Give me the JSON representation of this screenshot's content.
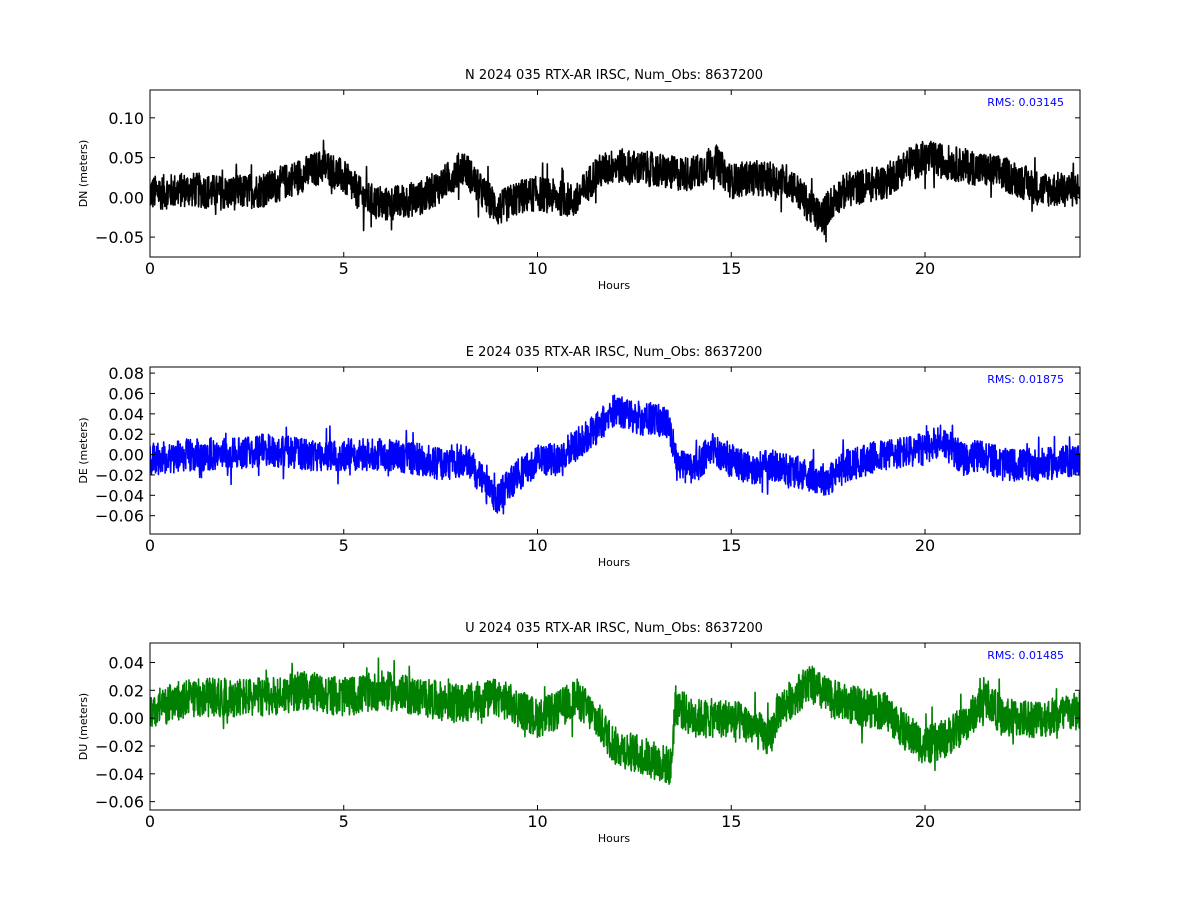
{
  "chart_data": [
    {
      "type": "line",
      "title": "N 2024 035 RTX-AR  IRSC, Num_Obs: 8637200",
      "xlabel": "Hours",
      "ylabel": "DN (meters)",
      "xlim": [
        0,
        24
      ],
      "ylim": [
        -0.075,
        0.135
      ],
      "xticks": [
        0,
        5,
        10,
        15,
        20
      ],
      "yticks": [
        -0.05,
        0.0,
        0.05,
        0.1
      ],
      "ytick_labels": [
        "−0.05",
        "0.00",
        "0.05",
        "0.10"
      ],
      "rms_label": "RMS:  0.03145",
      "color": "#000000",
      "grid": false,
      "series": [
        {
          "trend": [
            [
              0,
              0.005
            ],
            [
              1,
              0.01
            ],
            [
              2,
              0.005
            ],
            [
              3,
              0.01
            ],
            [
              3.5,
              0.02
            ],
            [
              4.5,
              0.04
            ],
            [
              5,
              0.025
            ],
            [
              5.5,
              0.0
            ],
            [
              6,
              -0.01
            ],
            [
              7,
              0.0
            ],
            [
              7.5,
              0.015
            ],
            [
              8.1,
              0.04
            ],
            [
              8.5,
              0.01
            ],
            [
              9,
              -0.015
            ],
            [
              9.5,
              0.0
            ],
            [
              10,
              0.005
            ],
            [
              10.5,
              0.0
            ],
            [
              11,
              -0.005
            ],
            [
              11.5,
              0.03
            ],
            [
              12,
              0.04
            ],
            [
              13,
              0.035
            ],
            [
              13.5,
              0.03
            ],
            [
              14,
              0.03
            ],
            [
              14.6,
              0.045
            ],
            [
              15,
              0.02
            ],
            [
              15.5,
              0.025
            ],
            [
              16.5,
              0.02
            ],
            [
              17,
              -0.01
            ],
            [
              17.3,
              -0.025
            ],
            [
              17.7,
              0.0
            ],
            [
              18,
              0.01
            ],
            [
              19,
              0.02
            ],
            [
              19.5,
              0.04
            ],
            [
              20,
              0.05
            ],
            [
              20.5,
              0.045
            ],
            [
              21,
              0.04
            ],
            [
              21.5,
              0.035
            ],
            [
              22,
              0.03
            ],
            [
              22.5,
              0.02
            ],
            [
              23,
              0.01
            ],
            [
              24,
              0.01
            ]
          ],
          "noise": 0.022
        }
      ]
    },
    {
      "type": "line",
      "title": "E 2024 035 RTX-AR  IRSC, Num_Obs: 8637200",
      "xlabel": "Hours",
      "ylabel": "DE (meters)",
      "xlim": [
        0,
        24
      ],
      "ylim": [
        -0.078,
        0.086
      ],
      "xticks": [
        0,
        5,
        10,
        15,
        20
      ],
      "yticks": [
        -0.06,
        -0.04,
        -0.02,
        0.0,
        0.02,
        0.04,
        0.06,
        0.08
      ],
      "ytick_labels": [
        "−0.06",
        "−0.04",
        "−0.02",
        "0.00",
        "0.02",
        "0.04",
        "0.06",
        "0.08"
      ],
      "rms_label": "RMS:  0.01875",
      "color": "#0000ff",
      "grid": false,
      "series": [
        {
          "trend": [
            [
              0,
              -0.005
            ],
            [
              1,
              0.0
            ],
            [
              2,
              0.0
            ],
            [
              3,
              0.005
            ],
            [
              4,
              0.0
            ],
            [
              5,
              0.0
            ],
            [
              6,
              0.0
            ],
            [
              7,
              -0.005
            ],
            [
              7.5,
              -0.01
            ],
            [
              8.2,
              -0.005
            ],
            [
              8.9,
              -0.045
            ],
            [
              9.5,
              -0.02
            ],
            [
              10,
              -0.005
            ],
            [
              10.5,
              -0.005
            ],
            [
              11,
              0.01
            ],
            [
              11.5,
              0.025
            ],
            [
              12,
              0.045
            ],
            [
              12.5,
              0.035
            ],
            [
              13,
              0.035
            ],
            [
              13.4,
              0.03
            ],
            [
              13.6,
              -0.01
            ],
            [
              14,
              -0.015
            ],
            [
              14.5,
              0.005
            ],
            [
              15,
              -0.005
            ],
            [
              15.5,
              -0.015
            ],
            [
              16,
              -0.01
            ],
            [
              17,
              -0.02
            ],
            [
              17.5,
              -0.025
            ],
            [
              18,
              -0.01
            ],
            [
              19,
              0.0
            ],
            [
              20,
              0.005
            ],
            [
              20.4,
              0.015
            ],
            [
              21,
              -0.005
            ],
            [
              21.5,
              0.0
            ],
            [
              22,
              -0.01
            ],
            [
              23,
              -0.01
            ],
            [
              24,
              -0.005
            ]
          ],
          "noise": 0.016
        }
      ]
    },
    {
      "type": "line",
      "title": "U 2024 035 RTX-AR  IRSC, Num_Obs: 8637200",
      "xlabel": "Hours",
      "ylabel": "DU (meters)",
      "xlim": [
        0,
        24
      ],
      "ylim": [
        -0.066,
        0.054
      ],
      "xticks": [
        0,
        5,
        10,
        15,
        20
      ],
      "yticks": [
        -0.06,
        -0.04,
        -0.02,
        0.0,
        0.02,
        0.04
      ],
      "ytick_labels": [
        "−0.06",
        "−0.04",
        "−0.02",
        "0.00",
        "0.02",
        "0.04"
      ],
      "rms_label": "RMS:  0.01485",
      "color": "#008000",
      "grid": false,
      "series": [
        {
          "trend": [
            [
              0,
              0.005
            ],
            [
              1,
              0.015
            ],
            [
              2,
              0.015
            ],
            [
              3,
              0.015
            ],
            [
              4,
              0.02
            ],
            [
              5,
              0.015
            ],
            [
              6,
              0.02
            ],
            [
              7,
              0.015
            ],
            [
              8,
              0.01
            ],
            [
              9,
              0.015
            ],
            [
              10,
              0.0
            ],
            [
              10.5,
              0.005
            ],
            [
              11,
              0.015
            ],
            [
              11.5,
              0.0
            ],
            [
              12,
              -0.02
            ],
            [
              12.5,
              -0.025
            ],
            [
              13,
              -0.03
            ],
            [
              13.45,
              -0.035
            ],
            [
              13.55,
              0.01
            ],
            [
              14,
              0.0
            ],
            [
              15,
              0.0
            ],
            [
              15.5,
              -0.005
            ],
            [
              16,
              -0.015
            ],
            [
              16.2,
              0.005
            ],
            [
              17,
              0.025
            ],
            [
              17.5,
              0.015
            ],
            [
              18,
              0.01
            ],
            [
              19,
              0.005
            ],
            [
              19.5,
              -0.01
            ],
            [
              20,
              -0.02
            ],
            [
              20.5,
              -0.015
            ],
            [
              21,
              -0.005
            ],
            [
              21.6,
              0.015
            ],
            [
              22,
              0.0
            ],
            [
              23,
              0.0
            ],
            [
              24,
              0.005
            ]
          ],
          "noise": 0.014
        }
      ]
    }
  ]
}
